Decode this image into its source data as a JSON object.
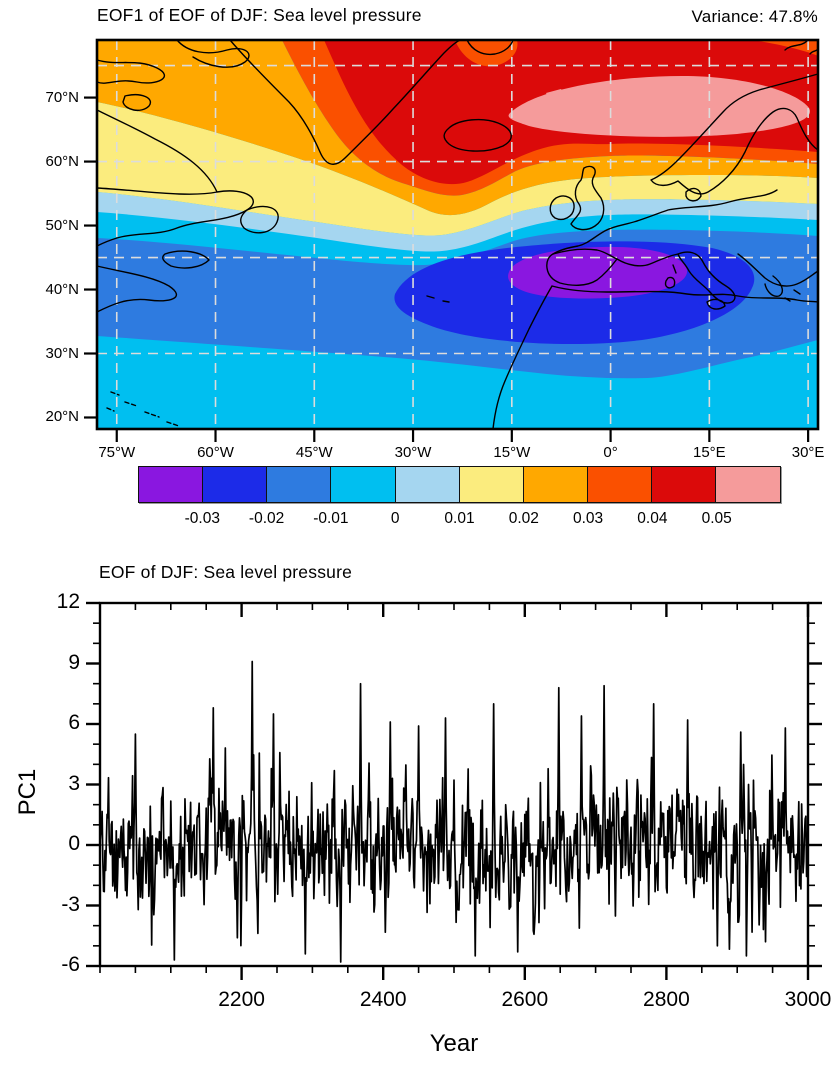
{
  "page": {
    "bg": "#ffffff",
    "fg": "#000000"
  },
  "map_panel": {
    "title": "EOF1 of EOF of DJF: Sea level pressure",
    "variance_label": "Variance: 47.8%",
    "lon_range": [
      -78,
      31.5
    ],
    "lat_range": [
      18.2,
      79
    ],
    "lat_tick_labels": [
      {
        "label": "70°N",
        "lat": 70
      },
      {
        "label": "60°N",
        "lat": 60
      },
      {
        "label": "50°N",
        "lat": 50
      },
      {
        "label": "40°N",
        "lat": 40
      },
      {
        "label": "30°N",
        "lat": 30
      },
      {
        "label": "20°N",
        "lat": 20
      }
    ],
    "lon_tick_labels": [
      {
        "label": "75°W",
        "lon": -75
      },
      {
        "label": "60°W",
        "lon": -60
      },
      {
        "label": "45°W",
        "lon": -45
      },
      {
        "label": "30°W",
        "lon": -30
      },
      {
        "label": "15°W",
        "lon": -15
      },
      {
        "label": "0°",
        "lon": 0
      },
      {
        "label": "15°E",
        "lon": 15
      },
      {
        "label": "30°E",
        "lon": 30
      }
    ],
    "grid_lats": [
      30,
      45,
      60,
      75
    ],
    "grid_lons": [
      -75,
      -60,
      -45,
      -30,
      -15,
      0,
      15,
      30
    ],
    "grid_color": "#dcdcdc",
    "coast_color": "#000000"
  },
  "colorbar": {
    "colors": [
      "#8A17E0",
      "#1C2BE8",
      "#2E7BE0",
      "#00BFF0",
      "#A5D6F0",
      "#FBEC7E",
      "#FFA800",
      "#FA5000",
      "#DB0A0A",
      "#F59B9B"
    ],
    "tick_labels": [
      "-0.03",
      "-0.02",
      "-0.01",
      "0",
      "0.01",
      "0.02",
      "0.03",
      "0.04",
      "0.05"
    ]
  },
  "ts_panel": {
    "title": "EOF of DJF: Sea level pressure",
    "xlabel": "Year",
    "ylabel": "PC1"
  },
  "chart_data": [
    {
      "type": "heatmap",
      "subtype": "filled_contour_map",
      "title": "EOF1 of EOF of DJF: Sea level pressure",
      "annotation": "Variance: 47.8%",
      "region": "North Atlantic / Europe",
      "lon_range": [
        -78,
        31.5
      ],
      "lat_range": [
        18.2,
        79
      ],
      "contour_levels": [
        -0.03,
        -0.02,
        -0.01,
        0,
        0.01,
        0.02,
        0.03,
        0.04,
        0.05
      ],
      "fill_colors": [
        "#8A17E0",
        "#1C2BE8",
        "#2E7BE0",
        "#00BFF0",
        "#A5D6F0",
        "#FBEC7E",
        "#FFA800",
        "#FA5000",
        "#DB0A0A",
        "#F59B9B"
      ],
      "pattern_summary": "NAO-like dipole: negative center below -0.03 over Iberia near 40N 5W-5E; positive center above 0.05 over the Norwegian Sea near 68N 0-20E; zero line near 55N",
      "grid": true,
      "x_ticks": [
        "75°W",
        "60°W",
        "45°W",
        "30°W",
        "15°W",
        "0°",
        "15°E",
        "30°E"
      ],
      "y_ticks": [
        "70°N",
        "60°N",
        "50°N",
        "40°N",
        "30°N",
        "20°N"
      ]
    },
    {
      "type": "line",
      "title": "EOF of DJF: Sea level pressure",
      "xlabel": "Year",
      "ylabel": "PC1",
      "xlim": [
        2000,
        3000
      ],
      "ylim": [
        -6,
        12
      ],
      "x_major_ticks": [
        2200,
        2400,
        2600,
        2800,
        3000
      ],
      "x_minor_step": 50,
      "y_major_ticks": [
        -6,
        -3,
        0,
        3,
        6,
        9,
        12
      ],
      "y_minor_step": 1,
      "grid": false,
      "line_color": "#000000",
      "series": {
        "name": "PC1",
        "points_per_year": 1,
        "approx_mean": 0,
        "approx_std": 2,
        "max": 9.1,
        "max_year": 2215,
        "min": -5.8,
        "min_year": 2340,
        "seed": 20240613
      },
      "notable_points": [
        [
          2050,
          5.5
        ],
        [
          2105,
          -5.7
        ],
        [
          2160,
          6.8
        ],
        [
          2215,
          9.1
        ],
        [
          2245,
          6.5
        ],
        [
          2290,
          -5.4
        ],
        [
          2340,
          -5.8
        ],
        [
          2368,
          8.0
        ],
        [
          2410,
          6.1
        ],
        [
          2450,
          5.9
        ],
        [
          2488,
          6.3
        ],
        [
          2530,
          -5.5
        ],
        [
          2556,
          7.0
        ],
        [
          2590,
          -5.3
        ],
        [
          2648,
          7.8
        ],
        [
          2680,
          6.4
        ],
        [
          2712,
          7.9
        ],
        [
          2782,
          7.0
        ],
        [
          2830,
          6.2
        ],
        [
          2872,
          -5.0
        ],
        [
          2905,
          5.6
        ],
        [
          2940,
          -4.8
        ],
        [
          2968,
          5.8
        ]
      ]
    }
  ]
}
